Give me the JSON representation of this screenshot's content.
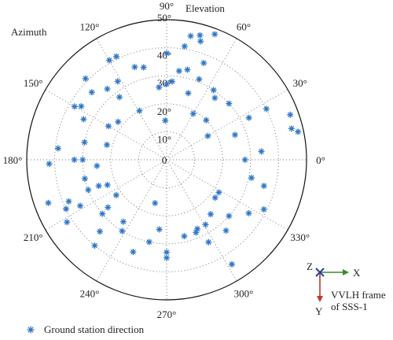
{
  "colors": {
    "marker": "#2e75c9",
    "axis_x": "#3a8a2e",
    "axis_y": "#c0392b",
    "origin": "#2a3fa0",
    "grid": "#777777",
    "text": "#222222"
  },
  "legend": {
    "symbol": "asterisk",
    "label": "Ground station direction",
    "placement": "bottom-left"
  },
  "frame_inset": {
    "z_label": "Z",
    "x_label": "X",
    "y_label": "Y",
    "caption_lines": [
      "VVLH frame",
      "of SSS-1"
    ],
    "placement": "bottom-right"
  },
  "chart_data": {
    "type": "scatter",
    "coordinate_system": "polar",
    "angular_axis": {
      "label": "Azimuth",
      "unit": "degree",
      "tick_values": [
        0,
        30,
        60,
        90,
        120,
        150,
        180,
        210,
        240,
        270,
        300,
        330
      ],
      "tick_labels": [
        "0°",
        "30°",
        "60°",
        "90°",
        "120°",
        "150°",
        "180°",
        "210°",
        "240°",
        "270°",
        "300°",
        "330°"
      ],
      "zero_direction": "right",
      "rotation": "counterclockwise"
    },
    "radial_axis": {
      "label": "Elevation",
      "range": [
        0,
        50
      ],
      "tick_values": [
        0,
        10,
        20,
        30,
        40,
        50
      ],
      "tick_labels": [
        "0",
        "10°",
        "20°",
        "30°",
        "40°",
        "50°"
      ],
      "label_direction": 90
    },
    "grid": true,
    "series": [
      {
        "name": "Ground station direction",
        "marker": "asterisk",
        "points": [
          {
            "az": 69,
            "el": 48
          },
          {
            "az": 75,
            "el": 46
          },
          {
            "az": 79,
            "el": 45
          },
          {
            "az": 74,
            "el": 44
          },
          {
            "az": 81,
            "el": 41
          },
          {
            "az": 116,
            "el": 41
          },
          {
            "az": 120,
            "el": 41
          },
          {
            "az": 135,
            "el": 41
          },
          {
            "az": 90,
            "el": 38
          },
          {
            "az": 69,
            "el": 37
          },
          {
            "az": 150,
            "el": 38
          },
          {
            "az": 148,
            "el": 36
          },
          {
            "az": 138,
            "el": 36
          },
          {
            "az": 77,
            "el": 33
          },
          {
            "az": 109,
            "el": 35
          },
          {
            "az": 104,
            "el": 34
          },
          {
            "az": 130,
            "el": 33
          },
          {
            "az": 82,
            "el": 32
          },
          {
            "az": 122,
            "el": 33
          },
          {
            "az": 56,
            "el": 30
          },
          {
            "az": 68,
            "el": 31
          },
          {
            "az": 86,
            "el": 28
          },
          {
            "az": 90,
            "el": 27
          },
          {
            "az": 52,
            "el": 28
          },
          {
            "az": 42,
            "el": 30
          },
          {
            "az": 96,
            "el": 26
          },
          {
            "az": 27,
            "el": 33
          },
          {
            "az": 27,
            "el": 40
          },
          {
            "az": 20,
            "el": 47
          },
          {
            "az": 14,
            "el": 46
          },
          {
            "az": 12,
            "el": 48
          },
          {
            "az": 45,
            "el": 20
          },
          {
            "az": 60,
            "el": 19
          },
          {
            "az": 72,
            "el": 25
          },
          {
            "az": 20,
            "el": 26
          },
          {
            "az": 5,
            "el": 34
          },
          {
            "az": 30,
            "el": 17
          },
          {
            "az": 127,
            "el": 28
          },
          {
            "az": 92,
            "el": 14
          },
          {
            "az": 119,
            "el": 20
          },
          {
            "az": 168,
            "el": 30
          },
          {
            "az": 142,
            "el": 22
          },
          {
            "az": 166,
            "el": 22
          },
          {
            "az": 154,
            "el": 33
          },
          {
            "az": 150,
            "el": 24
          },
          {
            "az": 180,
            "el": 30
          },
          {
            "az": 193,
            "el": 30
          },
          {
            "az": 185,
            "el": 25
          },
          {
            "az": 182,
            "el": 42
          },
          {
            "az": 180,
            "el": 33
          },
          {
            "az": 174,
            "el": 39
          },
          {
            "az": 201,
            "el": 26
          },
          {
            "az": 203,
            "el": 23
          },
          {
            "az": 208,
            "el": 35
          },
          {
            "az": 200,
            "el": 45
          },
          {
            "az": 203,
            "el": 38
          },
          {
            "az": 206,
            "el": 40
          },
          {
            "az": 212,
            "el": 42
          },
          {
            "az": 201,
            "el": 30
          },
          {
            "az": 227,
            "el": 35
          },
          {
            "az": 215,
            "el": 22
          },
          {
            "az": 219,
            "el": 27
          },
          {
            "az": 220,
            "el": 30
          },
          {
            "az": 230,
            "el": 40
          },
          {
            "az": 235,
            "el": 27
          },
          {
            "az": 238,
            "el": 30
          },
          {
            "az": 264,
            "el": 25
          },
          {
            "az": 270,
            "el": 33
          },
          {
            "az": 270,
            "el": 35
          },
          {
            "az": 258,
            "el": 30
          },
          {
            "az": 250,
            "el": 35
          },
          {
            "az": 294,
            "el": 27
          },
          {
            "az": 283,
            "el": 28
          },
          {
            "az": 297,
            "el": 33
          },
          {
            "az": 292,
            "el": 28
          },
          {
            "az": 301,
            "el": 27
          },
          {
            "az": 309,
            "el": 25
          },
          {
            "az": 328,
            "el": 22
          },
          {
            "az": 310,
            "el": 33
          },
          {
            "az": 318,
            "el": 30
          },
          {
            "az": 327,
            "el": 35
          },
          {
            "az": 348,
            "el": 31
          },
          {
            "az": 345,
            "el": 36
          },
          {
            "az": 333,
            "el": 39
          },
          {
            "az": 302,
            "el": 44
          },
          {
            "az": 255,
            "el": 16
          },
          {
            "az": 0,
            "el": 28
          },
          {
            "az": 322,
            "el": 22
          }
        ]
      }
    ]
  }
}
